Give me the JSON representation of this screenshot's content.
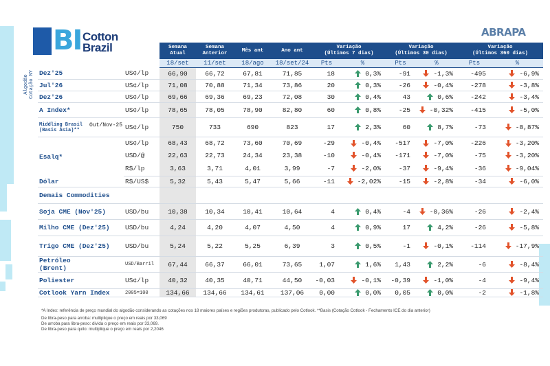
{
  "logo": {
    "mark": "BI",
    "line1": "Cotton",
    "line2": "Brazil"
  },
  "partner": "ABRAPA",
  "side_label": [
    "Algodão",
    "Cotação NY"
  ],
  "table": {
    "columns": [
      [
        "Semana",
        "Atual"
      ],
      [
        "Semana",
        "Anterior"
      ],
      [
        "Mês ant"
      ],
      [
        "Ano ant"
      ]
    ],
    "variations": [
      [
        "Variação",
        "(Últimos 7 dias)"
      ],
      [
        "Variação",
        "(Últimos 30 dias)"
      ],
      [
        "Variação",
        "(Últimos 360 dias)"
      ]
    ],
    "dates": [
      "18/set",
      "11/set",
      "18/ago",
      "18/set/24"
    ],
    "sub_headers": [
      "Pts",
      "%",
      "Pts",
      "%",
      "Pts",
      "%"
    ],
    "groups": [
      {
        "label": "Dez'25",
        "lines": [
          {
            "unit": "US¢/lp",
            "values": [
              "66,90",
              "66,72",
              "67,81",
              "71,85"
            ],
            "changes": [
              {
                "pts": "18",
                "pct": "0,3%",
                "arrow": "up"
              },
              {
                "pts": "-91",
                "pct": "-1,3%",
                "arrow": "down"
              },
              {
                "pts": "-495",
                "pct": "-6,9%",
                "arrow": "down"
              }
            ]
          }
        ]
      },
      {
        "label": "Jul'26",
        "lines": [
          {
            "unit": "US¢/lp",
            "values": [
              "71,08",
              "70,88",
              "71,34",
              "73,86"
            ],
            "changes": [
              {
                "pts": "20",
                "pct": "0,3%",
                "arrow": "up"
              },
              {
                "pts": "-26",
                "pct": "-0,4%",
                "arrow": "down"
              },
              {
                "pts": "-278",
                "pct": "-3,8%",
                "arrow": "down"
              }
            ]
          }
        ]
      },
      {
        "label": "Dez'26",
        "lines": [
          {
            "unit": "US¢/lp",
            "values": [
              "69,66",
              "69,36",
              "69,23",
              "72,08"
            ],
            "changes": [
              {
                "pts": "30",
                "pct": "0,4%",
                "arrow": "up"
              },
              {
                "pts": "43",
                "pct": "0,6%",
                "arrow": "up"
              },
              {
                "pts": "-242",
                "pct": "-3,4%",
                "arrow": "down"
              }
            ]
          }
        ]
      },
      {
        "label": "A Index*",
        "lines": [
          {
            "unit": "US¢/lp",
            "values": [
              "78,65",
              "78,05",
              "78,90",
              "82,80"
            ],
            "changes": [
              {
                "pts": "60",
                "pct": "0,8%",
                "arrow": "up"
              },
              {
                "pts": "-25",
                "pct": "-0,32%",
                "arrow": "down"
              },
              {
                "pts": "-415",
                "pct": "-5,0%",
                "arrow": "down"
              }
            ]
          }
        ]
      },
      {
        "label": "Middling Brasil",
        "sublabel": "(Basis Ásia)**",
        "period": "Out/Nov-25",
        "lines": [
          {
            "unit": "US¢/lp",
            "values": [
              "750",
              "733",
              "690",
              "823"
            ],
            "changes": [
              {
                "pts": "17",
                "pct": "2,3%",
                "arrow": "up"
              },
              {
                "pts": "60",
                "pct": "8,7%",
                "arrow": "up"
              },
              {
                "pts": "-73",
                "pct": "-8,87%",
                "arrow": "down"
              }
            ]
          }
        ]
      },
      {
        "label": "Esalq*",
        "lines": [
          {
            "unit": "US¢/lp",
            "values": [
              "68,43",
              "68,72",
              "73,60",
              "70,69"
            ],
            "changes": [
              {
                "pts": "-29",
                "pct": "-0,4%",
                "arrow": "down"
              },
              {
                "pts": "-517",
                "pct": "-7,0%",
                "arrow": "down"
              },
              {
                "pts": "-226",
                "pct": "-3,20%",
                "arrow": "down"
              }
            ]
          },
          {
            "unit": "USD/@",
            "values": [
              "22,63",
              "22,73",
              "24,34",
              "23,38"
            ],
            "changes": [
              {
                "pts": "-10",
                "pct": "-0,4%",
                "arrow": "down"
              },
              {
                "pts": "-171",
                "pct": "-7,0%",
                "arrow": "down"
              },
              {
                "pts": "-75",
                "pct": "-3,20%",
                "arrow": "down"
              }
            ]
          },
          {
            "unit": "R$/lp",
            "values": [
              "3,63",
              "3,71",
              "4,01",
              "3,99"
            ],
            "changes": [
              {
                "pts": "-7",
                "pct": "-2,0%",
                "arrow": "down"
              },
              {
                "pts": "-37",
                "pct": "-9,4%",
                "arrow": "down"
              },
              {
                "pts": "-36",
                "pct": "-9,04%",
                "arrow": "down"
              }
            ]
          }
        ]
      },
      {
        "label": "Dólar",
        "lines": [
          {
            "unit": "R$/US$",
            "values": [
              "5,32",
              "5,43",
              "5,47",
              "5,66"
            ],
            "changes": [
              {
                "pts": "-11",
                "pct": "-2,02%",
                "arrow": "down"
              },
              {
                "pts": "-15",
                "pct": "-2,8%",
                "arrow": "down"
              },
              {
                "pts": "-34",
                "pct": "-6,0%",
                "arrow": "down"
              }
            ]
          }
        ]
      },
      {
        "section": "Demais Commodities"
      },
      {
        "label": "Soja CME (Nov'25)",
        "lines": [
          {
            "unit": "USD/bu",
            "values": [
              "10,38",
              "10,34",
              "10,41",
              "10,64"
            ],
            "changes": [
              {
                "pts": "4",
                "pct": "0,4%",
                "arrow": "up"
              },
              {
                "pts": "-4",
                "pct": "-0,36%",
                "arrow": "down"
              },
              {
                "pts": "-26",
                "pct": "-2,4%",
                "arrow": "down"
              }
            ]
          }
        ]
      },
      {
        "label": "Milho CME (Dez'25)",
        "lines": [
          {
            "unit": "USD/bu",
            "values": [
              "4,24",
              "4,20",
              "4,07",
              "4,50"
            ],
            "changes": [
              {
                "pts": "4",
                "pct": "0,9%",
                "arrow": "up"
              },
              {
                "pts": "17",
                "pct": "4,2%",
                "arrow": "up"
              },
              {
                "pts": "-26",
                "pct": "-5,8%",
                "arrow": "down"
              }
            ]
          }
        ]
      },
      {
        "label": "Trigo CME (Dez'25)",
        "lines": [
          {
            "unit": "USD/bu",
            "values": [
              "5,24",
              "5,22",
              "5,25",
              "6,39"
            ],
            "changes": [
              {
                "pts": "3",
                "pct": "0,5%",
                "arrow": "up"
              },
              {
                "pts": "-1",
                "pct": "-0,1%",
                "arrow": "down"
              },
              {
                "pts": "-114",
                "pct": "-17,9%",
                "arrow": "down"
              }
            ]
          }
        ]
      },
      {
        "label": "Petróleo",
        "sublabel": "(Brent)",
        "lines": [
          {
            "unit": "USD/Barril",
            "values": [
              "67,44",
              "66,37",
              "66,01",
              "73,65"
            ],
            "changes": [
              {
                "pts": "1,07",
                "pct": "1,6%",
                "arrow": "up"
              },
              {
                "pts": "1,43",
                "pct": "2,2%",
                "arrow": "up"
              },
              {
                "pts": "-6",
                "pct": "-8,4%",
                "arrow": "down"
              }
            ]
          }
        ]
      },
      {
        "label": "Poliester",
        "lines": [
          {
            "unit": "US¢/lp",
            "values": [
              "40,32",
              "40,35",
              "40,71",
              "44,50"
            ],
            "changes": [
              {
                "pts": "-0,03",
                "pct": "-0,1%",
                "arrow": "down"
              },
              {
                "pts": "-0,39",
                "pct": "-1,0%",
                "arrow": "down"
              },
              {
                "pts": "-4",
                "pct": "-9,4%",
                "arrow": "down"
              }
            ]
          }
        ]
      },
      {
        "label": "Cotlook Yarn Index",
        "lines": [
          {
            "unit": "2005=100",
            "values": [
              "134,66",
              "134,66",
              "134,61",
              "137,06"
            ],
            "changes": [
              {
                "pts": "0,00",
                "pct": "0,0%",
                "arrow": "up"
              },
              {
                "pts": "0,05",
                "pct": "0,0%",
                "arrow": "up"
              },
              {
                "pts": "-2",
                "pct": "-1,8%",
                "arrow": "down"
              }
            ]
          }
        ]
      }
    ]
  },
  "footnotes": [
    "*A Index: referência de preço mundial do algodão considerando as cotações nos 18 maiores países e regiões produtoras, publicado pelo Cotlook. **Basis (Cotação Cotlook - Fechamento ICE do dia anterior)",
    "De libra-peso para arroba: multiplique o preço em reais por 33,069",
    "De arroba para libra-peso: divida o preço em reais por 33,069.",
    "De libra-peso para quilo: multiplique o preço em reais por 2,2046"
  ]
}
